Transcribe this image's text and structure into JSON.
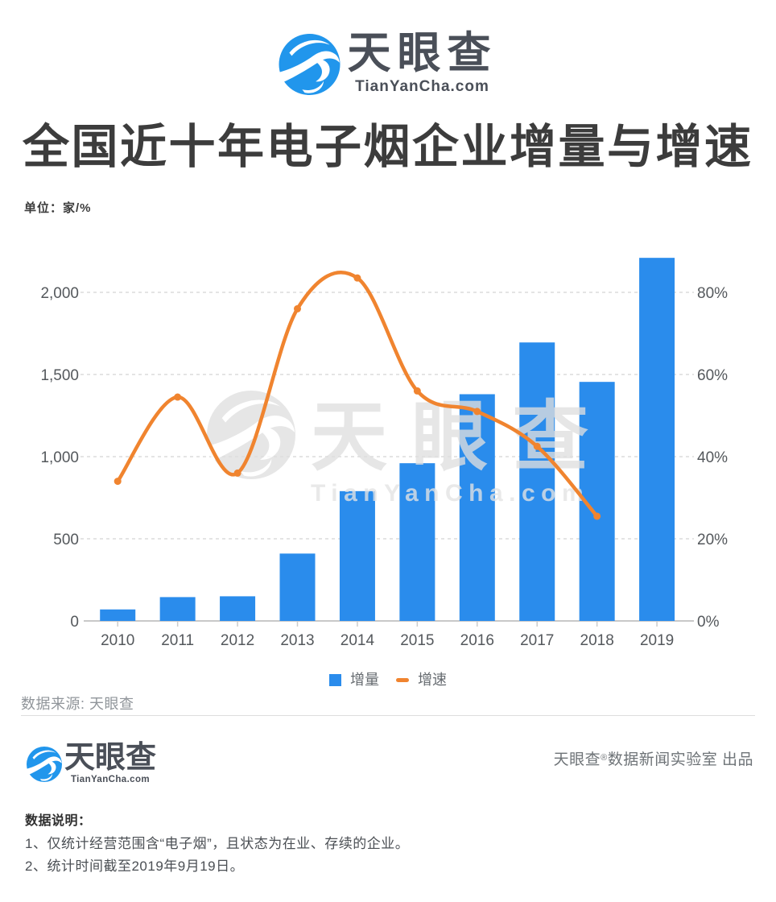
{
  "brand": {
    "name": "天眼查",
    "domain": "TianYanCha.com",
    "logo_blue": "#2196EC",
    "text_color": "#4A4F58"
  },
  "title": "全国近十年电子烟企业增量与增速",
  "unit_label": "单位：家/%",
  "chart_data": {
    "type": "bar+line",
    "categories": [
      "2010",
      "2011",
      "2012",
      "2013",
      "2014",
      "2015",
      "2016",
      "2017",
      "2018",
      "2019"
    ],
    "series": [
      {
        "name": "增量",
        "type": "bar",
        "color": "#2A8CEC",
        "axis": "left",
        "values": [
          70,
          145,
          150,
          410,
          790,
          960,
          1380,
          1695,
          1455,
          2210
        ]
      },
      {
        "name": "增速",
        "type": "line",
        "color": "#F0842F",
        "axis": "right",
        "values": [
          34,
          54.5,
          36,
          76,
          83.5,
          56,
          51,
          42.5,
          25.5,
          null
        ]
      }
    ],
    "left_axis": {
      "tick_labels": [
        "0",
        "500",
        "1,000",
        "1,500",
        "2,000"
      ],
      "min": 0,
      "max": 2000
    },
    "right_axis": {
      "tick_labels": [
        "0%",
        "20%",
        "40%",
        "60%",
        "80%"
      ],
      "min": 0,
      "max": 80
    },
    "legend": [
      "增量",
      "增速"
    ],
    "grid": "horizontal dashed",
    "legend_position": "bottom"
  },
  "watermark": {
    "name": "天眼查",
    "domain": "TianYanCha.com"
  },
  "source_label": "数据来源: 天眼查",
  "footer": {
    "credit_brand": "天眼查",
    "credit_mark": "®",
    "credit_text": "数据新闻实验室 出品"
  },
  "notes": {
    "heading": "数据说明：",
    "items": [
      "1、仅统计经营范围含“电子烟”，且状态为在业、存续的企业。",
      "2、统计时间截至2019年9月19日。"
    ]
  }
}
